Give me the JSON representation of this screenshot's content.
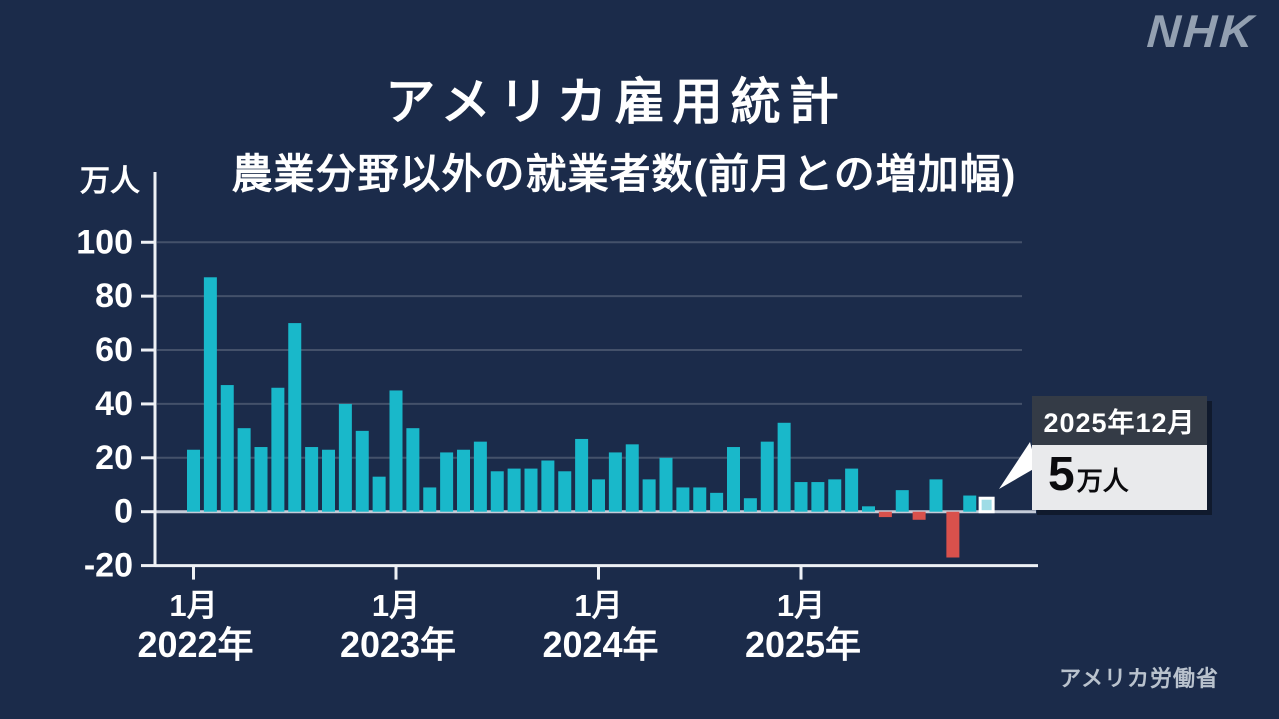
{
  "page": {
    "logo_text": "NHK",
    "title": "アメリカ雇用統計",
    "subtitle": "農業分野以外の就業者数(前月との増加幅)",
    "unit_label": "万人",
    "source": "アメリカ労働省"
  },
  "callout": {
    "date_label": "2025年12月",
    "value_number": "5",
    "value_unit": "万人"
  },
  "chart_data": {
    "type": "bar",
    "title": "農業分野以外の就業者数(前月との増加幅)",
    "xlabel": "",
    "ylabel": "万人",
    "ylim": [
      -20,
      100
    ],
    "yticks": [
      100,
      80,
      60,
      40,
      20,
      0,
      -20
    ],
    "grid": true,
    "legend": false,
    "x_ticks": [
      {
        "month": "1月",
        "year": "2022年",
        "index": 0
      },
      {
        "month": "1月",
        "year": "2023年",
        "index": 12
      },
      {
        "month": "1月",
        "year": "2024年",
        "index": 24
      },
      {
        "month": "1月",
        "year": "2025年",
        "index": 36
      }
    ],
    "highlight_index": 47,
    "colors": {
      "positive": "#19b8ca",
      "negative": "#d9514c",
      "highlight_fill": "#9fdce6",
      "highlight_stroke": "#ffffff",
      "grid_line": "rgba(255,255,255,0.18)",
      "zero_line": "#c4cbd8",
      "axis": "#eef1f5"
    },
    "series": [
      {
        "name": "前月との増加幅(万人)",
        "points": [
          {
            "month": "2022年1月",
            "value": 23
          },
          {
            "month": "2022年2月",
            "value": 87
          },
          {
            "month": "2022年3月",
            "value": 47
          },
          {
            "month": "2022年4月",
            "value": 31
          },
          {
            "month": "2022年5月",
            "value": 24
          },
          {
            "month": "2022年6月",
            "value": 46
          },
          {
            "month": "2022年7月",
            "value": 70
          },
          {
            "month": "2022年8月",
            "value": 24
          },
          {
            "month": "2022年9月",
            "value": 23
          },
          {
            "month": "2022年10月",
            "value": 40
          },
          {
            "month": "2022年11月",
            "value": 30
          },
          {
            "month": "2022年12月",
            "value": 13
          },
          {
            "month": "2023年1月",
            "value": 45
          },
          {
            "month": "2023年2月",
            "value": 31
          },
          {
            "month": "2023年3月",
            "value": 9
          },
          {
            "month": "2023年4月",
            "value": 22
          },
          {
            "month": "2023年5月",
            "value": 23
          },
          {
            "month": "2023年6月",
            "value": 26
          },
          {
            "month": "2023年7月",
            "value": 15
          },
          {
            "month": "2023年8月",
            "value": 16
          },
          {
            "month": "2023年9月",
            "value": 16
          },
          {
            "month": "2023年10月",
            "value": 19
          },
          {
            "month": "2023年11月",
            "value": 15
          },
          {
            "month": "2023年12月",
            "value": 27
          },
          {
            "month": "2024年1月",
            "value": 12
          },
          {
            "month": "2024年2月",
            "value": 22
          },
          {
            "month": "2024年3月",
            "value": 25
          },
          {
            "month": "2024年4月",
            "value": 12
          },
          {
            "month": "2024年5月",
            "value": 20
          },
          {
            "month": "2024年6月",
            "value": 9
          },
          {
            "month": "2024年7月",
            "value": 9
          },
          {
            "month": "2024年8月",
            "value": 7
          },
          {
            "month": "2024年9月",
            "value": 24
          },
          {
            "month": "2024年10月",
            "value": 5
          },
          {
            "month": "2024年11月",
            "value": 26
          },
          {
            "month": "2024年12月",
            "value": 33
          },
          {
            "month": "2025年1月",
            "value": 11
          },
          {
            "month": "2025年2月",
            "value": 11
          },
          {
            "month": "2025年3月",
            "value": 12
          },
          {
            "month": "2025年4月",
            "value": 16
          },
          {
            "month": "2025年5月",
            "value": 2
          },
          {
            "month": "2025年6月",
            "value": -2
          },
          {
            "month": "2025年7月",
            "value": 8
          },
          {
            "month": "2025年8月",
            "value": -3
          },
          {
            "month": "2025年9月",
            "value": 12
          },
          {
            "month": "2025年10月",
            "value": -17
          },
          {
            "month": "2025年11月",
            "value": 6
          },
          {
            "month": "2025年12月",
            "value": 5
          }
        ]
      }
    ]
  }
}
